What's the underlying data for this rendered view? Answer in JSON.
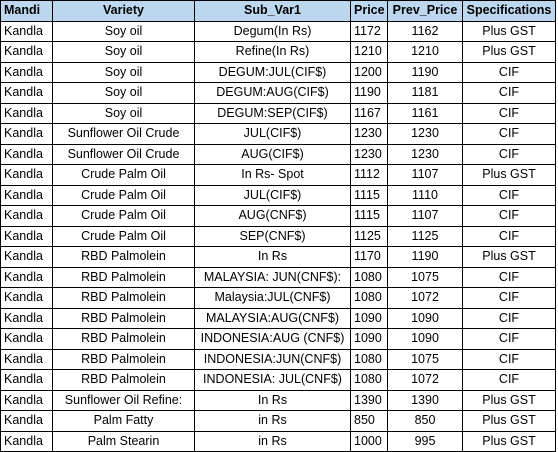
{
  "table": {
    "headers": [
      "Mandi",
      "Variety",
      "Sub_Var1",
      "Price",
      "Prev_Price",
      "Specifications"
    ],
    "rows": [
      [
        "Kandla",
        "Soy oil",
        "Degum(In Rs)",
        "1172",
        "1162",
        "Plus GST"
      ],
      [
        "Kandla",
        "Soy oil",
        "Refine(In Rs)",
        "1210",
        "1210",
        "Plus GST"
      ],
      [
        "Kandla",
        "Soy oil",
        "DEGUM:JUL(CIF$)",
        "1200",
        "1190",
        "CIF"
      ],
      [
        "Kandla",
        "Soy oil",
        "DEGUM:AUG(CIF$)",
        "1190",
        "1181",
        "CIF"
      ],
      [
        "Kandla",
        "Soy oil",
        "DEGUM:SEP(CIF$)",
        "1167",
        "1161",
        "CIF"
      ],
      [
        "Kandla",
        "Sunflower Oil Crude",
        "JUL(CIF$)",
        "1230",
        "1230",
        "CIF"
      ],
      [
        "Kandla",
        "Sunflower Oil Crude",
        "AUG(CIF$)",
        "1230",
        "1230",
        "CIF"
      ],
      [
        "Kandla",
        "Crude Palm Oil",
        "In Rs- Spot",
        "1112",
        "1107",
        "Plus GST"
      ],
      [
        "Kandla",
        "Crude Palm Oil",
        "JUL(CIF$)",
        "1115",
        "1110",
        "CIF"
      ],
      [
        "Kandla",
        "Crude Palm Oil",
        "AUG(CNF$)",
        "1115",
        "1107",
        "CIF"
      ],
      [
        "Kandla",
        "Crude Palm Oil",
        "SEP(CNF$)",
        "1125",
        "1125",
        "CIF"
      ],
      [
        "Kandla",
        "RBD Palmolein",
        "In Rs",
        "1170",
        "1190",
        "Plus GST"
      ],
      [
        "Kandla",
        "RBD Palmolein",
        "MALAYSIA: JUN(CNF$):",
        "1080",
        "1075",
        "CIF"
      ],
      [
        "Kandla",
        "RBD Palmolein",
        "Malaysia:JUL(CNF$)",
        "1080",
        "1072",
        "CIF"
      ],
      [
        "Kandla",
        "RBD Palmolein",
        "MALAYSIA:AUG(CNF$)",
        "1090",
        "1090",
        "CIF"
      ],
      [
        "Kandla",
        "RBD Palmolein",
        "INDONESIA:AUG (CNF$)",
        "1090",
        "1090",
        "CIF"
      ],
      [
        "Kandla",
        "RBD Palmolein",
        "INDONESIA:JUN(CNF$)",
        "1080",
        "1075",
        "CIF"
      ],
      [
        "Kandla",
        "RBD Palmolein",
        "INDONESIA: JUL(CNF$)",
        "1080",
        "1072",
        "CIF"
      ],
      [
        "Kandla",
        "Sunflower Oil Refine:",
        "In Rs",
        "1390",
        "1390",
        "Plus GST"
      ],
      [
        "Kandla",
        "Palm Fatty",
        "in Rs",
        "850",
        "850",
        "Plus GST"
      ],
      [
        "Kandla",
        "Palm Stearin",
        "in Rs",
        "1000",
        "995",
        "Plus GST"
      ]
    ]
  },
  "colors": {
    "header_bg": "#bdd7ee",
    "border": "#000000",
    "background": "#ffffff"
  }
}
